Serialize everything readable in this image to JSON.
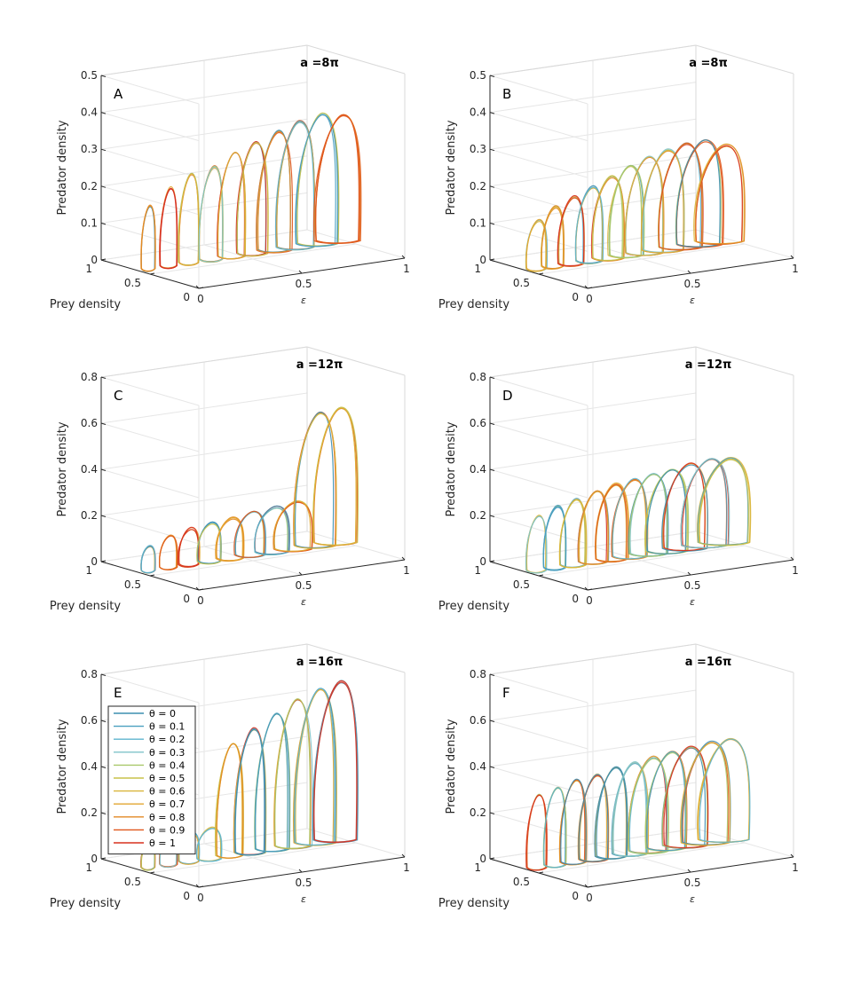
{
  "chart_data": [
    {
      "type": "line",
      "panel": "A",
      "title": "a =8π",
      "zlabel": "Predator density",
      "ylabel": "Prey density",
      "xlabel": "ε",
      "zlim": [
        0,
        0.5
      ],
      "zticks": [
        "0",
        "0.1",
        "0.2",
        "0.3",
        "0.4",
        "0.5"
      ],
      "xticks": [
        "0",
        "0.5",
        "1"
      ],
      "yticks": [
        "0",
        "0.5",
        "1"
      ],
      "grid": true,
      "loops": {
        "eps": [
          0.02,
          0.12,
          0.22,
          0.33,
          0.43,
          0.53,
          0.64,
          0.74,
          0.85,
          0.95
        ],
        "predator_max": [
          0.18,
          0.22,
          0.25,
          0.26,
          0.29,
          0.31,
          0.33,
          0.35,
          0.36,
          0.35
        ]
      }
    },
    {
      "type": "line",
      "panel": "B",
      "title": "a =8π",
      "zlabel": "Predator density",
      "ylabel": "Prey density",
      "xlabel": "ε",
      "zlim": [
        0,
        0.5
      ],
      "zticks": [
        "0",
        "0.1",
        "0.2",
        "0.3",
        "0.4",
        "0.5"
      ],
      "xticks": [
        "0",
        "0.5",
        "1"
      ],
      "yticks": [
        "0",
        "0.5",
        "1"
      ],
      "grid": true,
      "loops": {
        "eps": [
          0.02,
          0.1,
          0.19,
          0.28,
          0.37,
          0.46,
          0.55,
          0.64,
          0.73,
          0.82,
          0.92
        ],
        "predator_max": [
          0.14,
          0.17,
          0.19,
          0.21,
          0.23,
          0.25,
          0.27,
          0.28,
          0.29,
          0.29,
          0.27
        ]
      }
    },
    {
      "type": "line",
      "panel": "C",
      "title": "a =12π",
      "zlabel": "Predator density",
      "ylabel": "Prey density",
      "xlabel": "ε",
      "zlim": [
        0,
        0.8
      ],
      "zticks": [
        "0",
        "0.2",
        "0.4",
        "0.6",
        "0.8"
      ],
      "xticks": [
        "0",
        "0.5",
        "1"
      ],
      "yticks": [
        "0",
        "0.5",
        "1"
      ],
      "grid": true,
      "loops": {
        "eps": [
          0.02,
          0.12,
          0.22,
          0.32,
          0.42,
          0.52,
          0.63,
          0.73,
          0.84,
          0.94
        ],
        "predator_max": [
          0.12,
          0.15,
          0.17,
          0.18,
          0.19,
          0.2,
          0.21,
          0.22,
          0.59,
          0.6
        ]
      }
    },
    {
      "type": "line",
      "panel": "D",
      "title": "a =12π",
      "zlabel": "Predator density",
      "ylabel": "Prey density",
      "xlabel": "ε",
      "zlim": [
        0,
        0.8
      ],
      "zticks": [
        "0",
        "0.2",
        "0.4",
        "0.6",
        "0.8"
      ],
      "xticks": [
        "0",
        "0.5",
        "1"
      ],
      "yticks": [
        "0",
        "0.5",
        "1"
      ],
      "grid": true,
      "loops": {
        "eps": [
          0.02,
          0.11,
          0.2,
          0.3,
          0.39,
          0.48,
          0.57,
          0.66,
          0.75,
          0.85,
          0.94
        ],
        "predator_max": [
          0.25,
          0.28,
          0.3,
          0.32,
          0.34,
          0.35,
          0.36,
          0.37,
          0.38,
          0.39,
          0.38
        ]
      }
    },
    {
      "type": "line",
      "panel": "E",
      "title": "a =16π",
      "zlabel": "Predator density",
      "ylabel": "Prey density",
      "xlabel": "ε",
      "zlim": [
        0,
        0.8
      ],
      "zticks": [
        "0",
        "0.2",
        "0.4",
        "0.6",
        "0.8"
      ],
      "xticks": [
        "0",
        "0.5",
        "1"
      ],
      "yticks": [
        "0",
        "0.5",
        "1"
      ],
      "grid": true,
      "legend_position": "top-left",
      "loops": {
        "eps": [
          0.02,
          0.12,
          0.22,
          0.32,
          0.42,
          0.52,
          0.63,
          0.73,
          0.84,
          0.94
        ],
        "predator_max": [
          0.12,
          0.13,
          0.14,
          0.15,
          0.5,
          0.55,
          0.6,
          0.65,
          0.68,
          0.7
        ]
      }
    },
    {
      "type": "line",
      "panel": "F",
      "title": "a =16π",
      "zlabel": "Predator density",
      "ylabel": "Prey density",
      "xlabel": "ε",
      "zlim": [
        0,
        0.8
      ],
      "zticks": [
        "0",
        "0.2",
        "0.4",
        "0.6",
        "0.8"
      ],
      "xticks": [
        "0",
        "0.5",
        "1"
      ],
      "yticks": [
        "0",
        "0.5",
        "1"
      ],
      "grid": true,
      "loops": {
        "eps": [
          0.02,
          0.11,
          0.2,
          0.3,
          0.39,
          0.48,
          0.57,
          0.66,
          0.75,
          0.85,
          0.94
        ],
        "predator_max": [
          0.33,
          0.35,
          0.37,
          0.38,
          0.4,
          0.41,
          0.42,
          0.43,
          0.44,
          0.45,
          0.45
        ]
      }
    }
  ],
  "legend": {
    "entries": [
      "θ = 0",
      "θ = 0.1",
      "θ = 0.2",
      "θ = 0.3",
      "θ = 0.4",
      "θ = 0.5",
      "θ = 0.6",
      "θ = 0.7",
      "θ = 0.8",
      "θ = 0.9",
      "θ = 1"
    ],
    "colors": [
      "#3d8fb1",
      "#4a9fc0",
      "#5eb5cf",
      "#7fc3c8",
      "#a9c86a",
      "#c8c24a",
      "#d9b63b",
      "#e2a630",
      "#e38a24",
      "#e0561b",
      "#d7301f"
    ]
  }
}
